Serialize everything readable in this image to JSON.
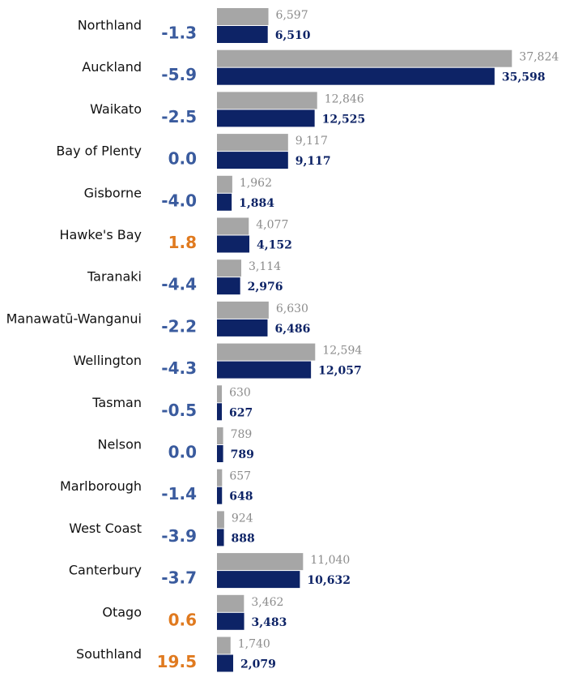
{
  "chart_data": {
    "type": "bar",
    "orientation": "horizontal",
    "categories": [
      "Northland",
      "Auckland",
      "Waikato",
      "Bay of Plenty",
      "Gisborne",
      "Hawke's Bay",
      "Taranaki",
      "Manawatū-Wanganui",
      "Wellington",
      "Tasman",
      "Nelson",
      "Marlborough",
      "West Coast",
      "Canterbury",
      "Otago",
      "Southland"
    ],
    "series": [
      {
        "color": "#a6a6a6",
        "label_color": "#8c8c8c",
        "values": [
          6597,
          37824,
          12846,
          9117,
          1962,
          4077,
          3114,
          6630,
          12594,
          630,
          789,
          657,
          924,
          11040,
          3462,
          1740
        ],
        "value_labels": [
          "6,597",
          "37,824",
          "12,846",
          "9,117",
          "1,962",
          "4,077",
          "3,114",
          "6,630",
          "12,594",
          "630",
          "789",
          "657",
          "924",
          "11,040",
          "3,462",
          "1,740"
        ]
      },
      {
        "color": "#0d2366",
        "label_color": "#0d2366",
        "bold": true,
        "values": [
          6510,
          35598,
          12525,
          9117,
          1884,
          4152,
          2976,
          6486,
          12057,
          627,
          789,
          648,
          888,
          10632,
          3483,
          2079
        ],
        "value_labels": [
          "6,510",
          "35,598",
          "12,525",
          "9,117",
          "1,884",
          "4,152",
          "2,976",
          "6,486",
          "12,057",
          "627",
          "789",
          "648",
          "888",
          "10,632",
          "3,483",
          "2,079"
        ]
      }
    ],
    "changes": {
      "values": [
        -1.3,
        -5.9,
        -2.5,
        0,
        -4.0,
        1.8,
        -4.4,
        -2.2,
        -4.3,
        -0.5,
        0,
        -1.4,
        -3.9,
        -3.7,
        0.6,
        19.5
      ],
      "value_labels": [
        "-1.3",
        "-5.9",
        "-2.5",
        "0.0",
        "-4.0",
        "1.8",
        "-4.4",
        "-2.2",
        "-4.3",
        "-0.5",
        "0.0",
        "-1.4",
        "-3.9",
        "-3.7",
        "0.6",
        "19.5"
      ],
      "negative_color": "#3a5b9e",
      "positive_color": "#e07a1f"
    },
    "xlim": [
      0,
      38000
    ]
  }
}
